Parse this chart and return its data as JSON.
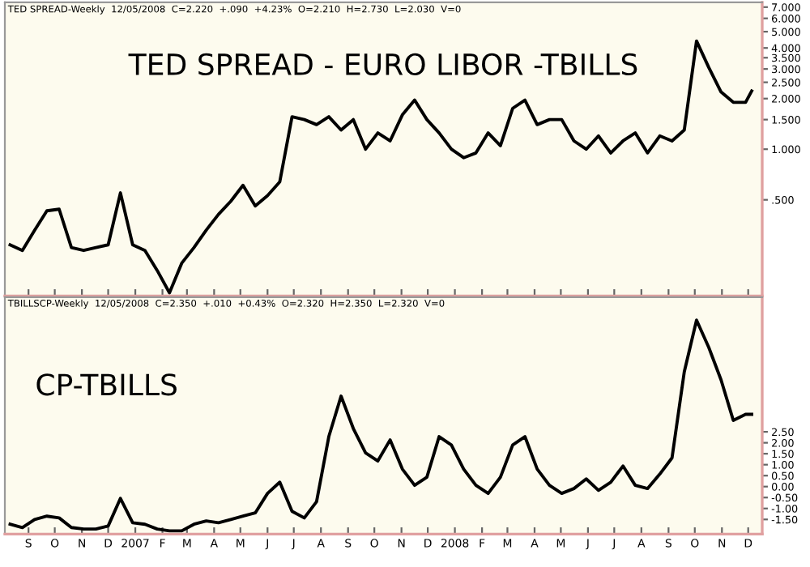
{
  "chart_data": [
    {
      "type": "line",
      "title": "TED SPREAD - EURO LIBOR -TBILLS",
      "subtitle": "TED SPREAD-Weekly  12/05/2008  C=2.220  +.090  +4.23%  O=2.210  H=2.730  L=2.030  V=0",
      "log": true,
      "tick_labels": "y",
      "color": "#000000",
      "x": [
        "2006-08-11",
        "2006-08-25",
        "2006-09-08",
        "2006-09-22",
        "2006-10-06",
        "2006-10-20",
        "2006-11-03",
        "2006-11-17",
        "2006-12-01",
        "2006-12-15",
        "2006-12-29",
        "2007-01-12",
        "2007-01-26",
        "2007-02-09",
        "2007-02-23",
        "2007-03-09",
        "2007-03-23",
        "2007-04-06",
        "2007-04-20",
        "2007-05-04",
        "2007-05-18",
        "2007-06-01",
        "2007-06-15",
        "2007-06-29",
        "2007-07-13",
        "2007-07-27",
        "2007-08-10",
        "2007-08-24",
        "2007-09-07",
        "2007-09-21",
        "2007-10-05",
        "2007-10-19",
        "2007-11-02",
        "2007-11-16",
        "2007-11-30",
        "2007-12-14",
        "2007-12-28",
        "2008-01-11",
        "2008-01-25",
        "2008-02-08",
        "2008-02-22",
        "2008-03-07",
        "2008-03-21",
        "2008-04-04",
        "2008-04-18",
        "2008-05-02",
        "2008-05-16",
        "2008-05-30",
        "2008-06-13",
        "2008-06-27",
        "2008-07-11",
        "2008-07-25",
        "2008-08-08",
        "2008-08-22",
        "2008-09-05",
        "2008-09-19",
        "2008-10-03",
        "2008-10-17",
        "2008-10-31",
        "2008-11-14",
        "2008-11-28",
        "2008-12-05"
      ],
      "values": [
        0.27,
        0.25,
        0.33,
        0.43,
        0.44,
        0.26,
        0.25,
        0.26,
        0.27,
        0.55,
        0.27,
        0.25,
        0.19,
        0.14,
        0.21,
        0.26,
        0.33,
        0.41,
        0.49,
        0.61,
        0.46,
        0.53,
        0.64,
        1.56,
        1.5,
        1.4,
        1.56,
        1.3,
        1.5,
        1.0,
        1.25,
        1.12,
        1.6,
        1.96,
        1.5,
        1.25,
        1.0,
        0.89,
        0.95,
        1.25,
        1.05,
        1.75,
        1.96,
        1.4,
        1.5,
        1.5,
        1.12,
        1.0,
        1.2,
        0.95,
        1.12,
        1.25,
        0.95,
        1.2,
        1.12,
        1.3,
        4.4,
        3.06,
        2.19,
        1.9,
        1.9,
        2.22
      ],
      "xlim": [
        "2006-08-05",
        "2008-12-17"
      ],
      "ylim": [
        0.134,
        7.48
      ],
      "yticks": [
        {
          "value": 0.5,
          "label": ".500"
        },
        {
          "value": 1,
          "label": "1.000"
        },
        {
          "value": 1.5,
          "label": "1.500"
        },
        {
          "value": 2,
          "label": "2.000"
        },
        {
          "value": 2.5,
          "label": "2.500"
        },
        {
          "value": 3,
          "label": "3.000"
        },
        {
          "value": 3.5,
          "label": "3.500"
        },
        {
          "value": 4,
          "label": "4.000"
        },
        {
          "value": 5,
          "label": "5.000"
        },
        {
          "value": 6,
          "label": "6.000"
        },
        {
          "value": 7,
          "label": "7.000"
        }
      ],
      "xticks": [
        {
          "value": "2006-09-01",
          "label": null
        },
        {
          "value": "2006-10-01",
          "label": null
        },
        {
          "value": "2006-11-01",
          "label": null
        },
        {
          "value": "2006-12-01",
          "label": null
        },
        {
          "value": "2007-01-01",
          "label": null
        },
        {
          "value": "2007-02-01",
          "label": null
        },
        {
          "value": "2007-03-01",
          "label": null
        },
        {
          "value": "2007-04-01",
          "label": null
        },
        {
          "value": "2007-05-01",
          "label": null
        },
        {
          "value": "2007-06-01",
          "label": null
        },
        {
          "value": "2007-07-01",
          "label": null
        },
        {
          "value": "2007-08-01",
          "label": null
        },
        {
          "value": "2007-09-01",
          "label": null
        },
        {
          "value": "2007-10-01",
          "label": null
        },
        {
          "value": "2007-11-01",
          "label": null
        },
        {
          "value": "2007-12-01",
          "label": null
        },
        {
          "value": "2008-01-01",
          "label": null
        },
        {
          "value": "2008-02-01",
          "label": null
        },
        {
          "value": "2008-03-01",
          "label": null
        },
        {
          "value": "2008-04-01",
          "label": null
        },
        {
          "value": "2008-05-01",
          "label": null
        },
        {
          "value": "2008-06-01",
          "label": null
        },
        {
          "value": "2008-07-01",
          "label": null
        },
        {
          "value": "2008-08-01",
          "label": null
        },
        {
          "value": "2008-09-01",
          "label": null
        },
        {
          "value": "2008-10-01",
          "label": null
        },
        {
          "value": "2008-11-01",
          "label": null
        },
        {
          "value": "2008-12-01",
          "label": null
        }
      ]
    },
    {
      "type": "line",
      "title": "CP-TBILLS",
      "subtitle": "TBILLSCP-Weekly  12/05/2008  C=2.350  +.010  +0.43%  O=2.320  H=2.350  L=2.320  V=0",
      "color": "#000000",
      "x": [
        "2006-08-11",
        "2006-08-25",
        "2006-09-08",
        "2006-09-22",
        "2006-10-06",
        "2006-10-20",
        "2006-11-03",
        "2006-11-17",
        "2006-12-01",
        "2006-12-15",
        "2006-12-29",
        "2007-01-12",
        "2007-01-26",
        "2007-02-09",
        "2007-02-23",
        "2007-03-09",
        "2007-03-23",
        "2007-04-06",
        "2007-04-20",
        "2007-05-04",
        "2007-05-18",
        "2007-06-01",
        "2007-06-15",
        "2007-06-29",
        "2007-07-13",
        "2007-07-27",
        "2007-08-10",
        "2007-08-24",
        "2007-09-07",
        "2007-09-21",
        "2007-10-05",
        "2007-10-19",
        "2007-11-02",
        "2007-11-16",
        "2007-11-30",
        "2007-12-14",
        "2007-12-28",
        "2008-01-11",
        "2008-01-25",
        "2008-02-08",
        "2008-02-22",
        "2008-03-07",
        "2008-03-21",
        "2008-04-04",
        "2008-04-18",
        "2008-05-02",
        "2008-05-16",
        "2008-05-30",
        "2008-06-13",
        "2008-06-27",
        "2008-07-11",
        "2008-07-25",
        "2008-08-08",
        "2008-08-22",
        "2008-09-05",
        "2008-09-19",
        "2008-10-03",
        "2008-10-17",
        "2008-10-31",
        "2008-11-14",
        "2008-11-28",
        "2008-12-05"
      ],
      "values": [
        -1.72,
        -1.87,
        -1.5,
        -1.35,
        -1.43,
        -1.87,
        -1.94,
        -1.94,
        -1.8,
        -0.54,
        -1.65,
        -1.72,
        -1.94,
        -2.02,
        -2.02,
        -1.72,
        -1.57,
        -1.65,
        -1.5,
        -1.35,
        -1.2,
        -0.31,
        0.2,
        -1.13,
        -1.43,
        -0.69,
        2.28,
        4.13,
        2.65,
        1.54,
        1.17,
        2.13,
        0.8,
        0.06,
        0.43,
        2.28,
        1.9,
        0.8,
        0.06,
        -0.31,
        0.43,
        1.9,
        2.28,
        0.8,
        0.06,
        -0.31,
        -0.09,
        0.35,
        -0.17,
        0.2,
        0.94,
        0.06,
        -0.09,
        0.57,
        1.31,
        5.24,
        7.6,
        6.35,
        4.87,
        3.02,
        3.3,
        3.3
      ],
      "xlim": [
        "2006-08-05",
        "2008-12-17"
      ],
      "ylim": [
        -2.17,
        8.65
      ],
      "yticks": [
        {
          "value": -1.5,
          "label": "-1.50"
        },
        {
          "value": -1,
          "label": "-1.00"
        },
        {
          "value": -0.5,
          "label": "-0.50"
        },
        {
          "value": 0,
          "label": "0.00"
        },
        {
          "value": 0.5,
          "label": "0.50"
        },
        {
          "value": 1,
          "label": "1.00"
        },
        {
          "value": 1.5,
          "label": "1.50"
        },
        {
          "value": 2,
          "label": "2.00"
        },
        {
          "value": 2.5,
          "label": "2.50"
        }
      ],
      "xticks": [
        {
          "value": "2006-09-01",
          "label": "S"
        },
        {
          "value": "2006-10-01",
          "label": "O"
        },
        {
          "value": "2006-11-01",
          "label": "N"
        },
        {
          "value": "2006-12-01",
          "label": "D"
        },
        {
          "value": "2007-01-01",
          "label": "2007"
        },
        {
          "value": "2007-02-01",
          "label": "F"
        },
        {
          "value": "2007-03-01",
          "label": "M"
        },
        {
          "value": "2007-04-01",
          "label": "A"
        },
        {
          "value": "2007-05-01",
          "label": "M"
        },
        {
          "value": "2007-06-01",
          "label": "J"
        },
        {
          "value": "2007-07-01",
          "label": "J"
        },
        {
          "value": "2007-08-01",
          "label": "A"
        },
        {
          "value": "2007-09-01",
          "label": "S"
        },
        {
          "value": "2007-10-01",
          "label": "O"
        },
        {
          "value": "2007-11-01",
          "label": "N"
        },
        {
          "value": "2007-12-01",
          "label": "D"
        },
        {
          "value": "2008-01-01",
          "label": "2008"
        },
        {
          "value": "2008-02-01",
          "label": "F"
        },
        {
          "value": "2008-03-01",
          "label": "M"
        },
        {
          "value": "2008-04-01",
          "label": "A"
        },
        {
          "value": "2008-05-01",
          "label": "M"
        },
        {
          "value": "2008-06-01",
          "label": "J"
        },
        {
          "value": "2008-07-01",
          "label": "J"
        },
        {
          "value": "2008-08-01",
          "label": "A"
        },
        {
          "value": "2008-09-01",
          "label": "S"
        },
        {
          "value": "2008-10-01",
          "label": "O"
        },
        {
          "value": "2008-11-01",
          "label": "N"
        },
        {
          "value": "2008-12-01",
          "label": "D"
        }
      ]
    }
  ]
}
